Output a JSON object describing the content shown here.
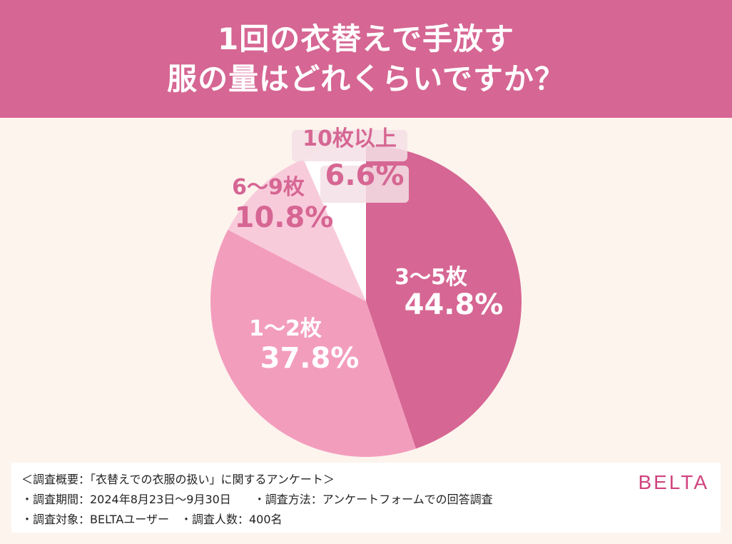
{
  "header": {
    "title_line1": "1回の衣替えで手放す",
    "title_line2": "服の量はどれくらいですか？"
  },
  "chart_data": {
    "type": "pie",
    "title": "1回の衣替えで手放す服の量はどれくらいですか？",
    "slices": [
      {
        "label": "3〜5枚",
        "value": 44.8,
        "value_label": "44.8%",
        "color": "#d66693",
        "label_color": "#ffffff"
      },
      {
        "label": "1〜2枚",
        "value": 37.8,
        "value_label": "37.8%",
        "color": "#f39dbd",
        "label_color": "#ffffff"
      },
      {
        "label": "6〜9枚",
        "value": 10.8,
        "value_label": "10.8%",
        "color": "#f8cbdb",
        "label_color": "#d66693"
      },
      {
        "label": "10枚以上",
        "value": 6.6,
        "value_label": "6.6%",
        "color": "#ffffff",
        "label_color": "#d66693"
      }
    ],
    "start": "12 o'clock",
    "direction": "clockwise"
  },
  "footer": {
    "line1": "＜調査概要：「衣替えでの衣服の扱い」に関するアンケート＞",
    "line2": "・調査期間：2024年8月23日〜9月30日　　・調査方法：アンケートフォームでの回答調査",
    "line3": "・調査対象：BELTAユーザー　・調査人数：400名",
    "brand": "BELTA"
  }
}
